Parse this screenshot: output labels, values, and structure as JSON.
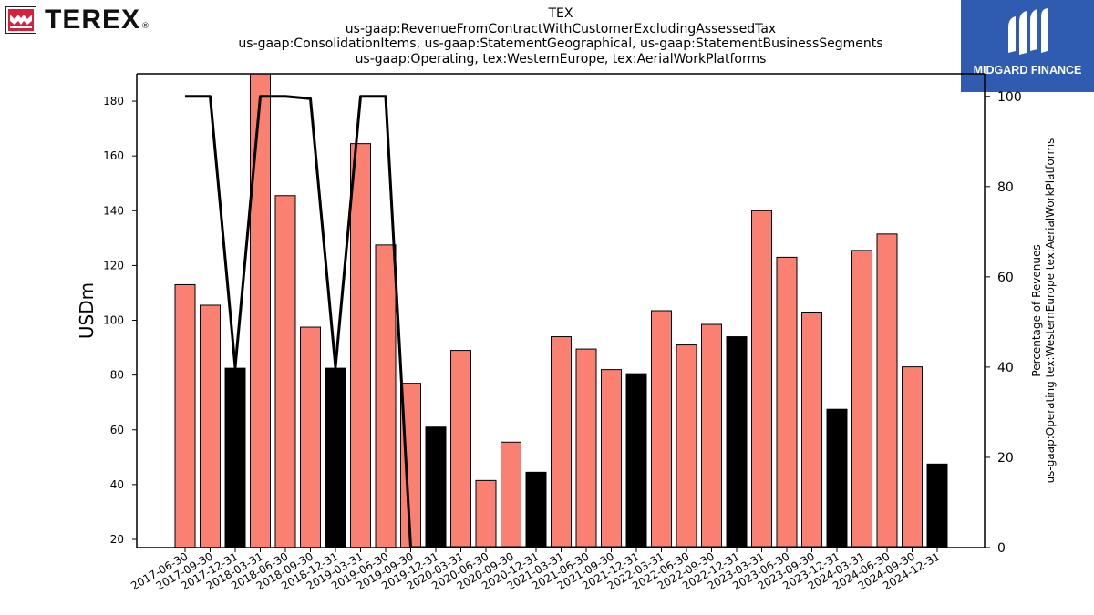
{
  "logos": {
    "left_text": "TEREX",
    "left_mark": "®",
    "right_text": "MIDGARD FINANCE"
  },
  "chart_data": {
    "type": "bar",
    "title_lines": [
      "TEX",
      "us-gaap:RevenueFromContractWithCustomerExcludingAssessedTax",
      "us-gaap:ConsolidationItems, us-gaap:StatementGeographical, us-gaap:StatementBusinessSegments",
      "us-gaap:Operating, tex:WesternEurope, tex:AerialWorkPlatforms"
    ],
    "ylabel": "USDm",
    "ylabel_right": [
      "Percentage of Revenues",
      "us-gaap:Operating tex:WesternEurope tex:AerialWorkPlatforms"
    ],
    "ylim": [
      17,
      190
    ],
    "ylim_right": [
      0,
      105
    ],
    "yticks": [
      20,
      40,
      60,
      80,
      100,
      120,
      140,
      160,
      180
    ],
    "yticks_right": [
      0,
      20,
      40,
      60,
      80,
      100
    ],
    "categories": [
      "2017-06-30",
      "2017-09-30",
      "2017-12-31",
      "2018-03-31",
      "2018-06-30",
      "2018-09-30",
      "2018-12-31",
      "2019-03-31",
      "2019-06-30",
      "2019-09-30",
      "2019-12-31",
      "2020-03-31",
      "2020-06-30",
      "2020-09-30",
      "2020-12-31",
      "2021-03-31",
      "2021-06-30",
      "2021-09-30",
      "2021-12-31",
      "2022-03-31",
      "2022-06-30",
      "2022-09-30",
      "2022-12-31",
      "2023-03-31",
      "2023-06-30",
      "2023-09-30",
      "2023-12-31",
      "2024-03-31",
      "2024-06-30",
      "2024-09-30",
      "2024-12-31"
    ],
    "values": [
      113,
      105.5,
      82.5,
      190,
      145.5,
      97.5,
      82.5,
      164.5,
      127.5,
      77,
      61,
      89,
      41.5,
      55.5,
      44.5,
      94,
      89.5,
      82,
      80.5,
      103.5,
      91,
      98.5,
      94,
      140,
      123,
      103,
      67.5,
      125.5,
      131.5,
      83,
      47.5
    ],
    "year_end": [
      false,
      false,
      true,
      false,
      false,
      false,
      true,
      false,
      false,
      false,
      true,
      false,
      false,
      false,
      true,
      false,
      false,
      false,
      true,
      false,
      false,
      false,
      true,
      false,
      false,
      false,
      true,
      false,
      false,
      false,
      true
    ],
    "line_series_percent": [
      100,
      100,
      40,
      100,
      100,
      99.5,
      40,
      100,
      100,
      0,
      0,
      0,
      0,
      0,
      0,
      0,
      0,
      0,
      0,
      0,
      0,
      0,
      0,
      0,
      0,
      0,
      0,
      0,
      0,
      0,
      0
    ],
    "colors": {
      "bar": "#fa8072",
      "bar_year_end": "#000000",
      "line": "#000000",
      "right_logo_bg": "#2f5bb0",
      "left_logo_red": "#d6203f"
    }
  }
}
